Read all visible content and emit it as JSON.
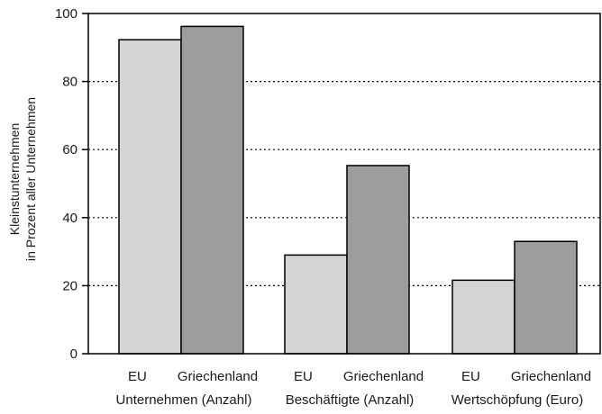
{
  "chart_data": {
    "type": "bar",
    "title": "",
    "ylabel": [
      "Kleinstunternehmen",
      "in Prozent aller Unternehmen"
    ],
    "xlabel": "",
    "ylim": [
      0,
      100
    ],
    "yticks": [
      0,
      20,
      40,
      60,
      80,
      100
    ],
    "grid": "horizontal-dotted",
    "groups": [
      {
        "label": "Unternehmen (Anzahl)",
        "bars": [
          {
            "label": "EU",
            "value": 92.3,
            "color": "#d4d4d4"
          },
          {
            "label": "Griechenland",
            "value": 96.2,
            "color": "#9d9d9f"
          }
        ]
      },
      {
        "label": "Beschäftigte (Anzahl)",
        "bars": [
          {
            "label": "EU",
            "value": 29.0,
            "color": "#d4d4d4"
          },
          {
            "label": "Griechenland",
            "value": 55.3,
            "color": "#9d9d9f"
          }
        ]
      },
      {
        "label": "Wertschöpfung (Euro)",
        "bars": [
          {
            "label": "EU",
            "value": 21.6,
            "color": "#d4d4d4"
          },
          {
            "label": "Griechenland",
            "value": 33.0,
            "color": "#9d9d9f"
          }
        ]
      }
    ]
  }
}
